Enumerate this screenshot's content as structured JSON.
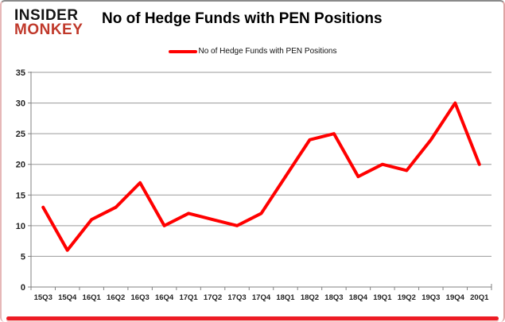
{
  "logo": {
    "line1": "INSIDER",
    "line2": "MONKEY"
  },
  "header": {
    "title": "No of Hedge Funds with PEN Positions"
  },
  "legend": {
    "label": "No of Hedge Funds with PEN Positions",
    "position": "top-center"
  },
  "colors": {
    "series_red": "#ff0000",
    "logo_red": "#c0392b",
    "bottom_border_red": "#ed1c24",
    "grid_gray": "#9a9a9a",
    "axis_gray": "#808080"
  },
  "chart_data": {
    "type": "line",
    "title": "No of Hedge Funds with PEN Positions",
    "categories": [
      "15Q3",
      "15Q4",
      "16Q1",
      "16Q2",
      "16Q3",
      "16Q4",
      "17Q1",
      "17Q2",
      "17Q3",
      "17Q4",
      "18Q1",
      "18Q2",
      "18Q3",
      "18Q4",
      "19Q1",
      "19Q2",
      "19Q3",
      "19Q4",
      "20Q1"
    ],
    "series": [
      {
        "name": "No of Hedge Funds with PEN Positions",
        "color": "#ff0000",
        "values": [
          13,
          6,
          11,
          13,
          17,
          10,
          12,
          11,
          10,
          12,
          18,
          24,
          25,
          18,
          20,
          19,
          24,
          30,
          20
        ]
      }
    ],
    "xlabel": "",
    "ylabel": "",
    "ylim": [
      0,
      35
    ],
    "yticks": [
      0,
      5,
      10,
      15,
      20,
      25,
      30,
      35
    ],
    "grid": "horizontal",
    "legend_position": "top-center"
  }
}
